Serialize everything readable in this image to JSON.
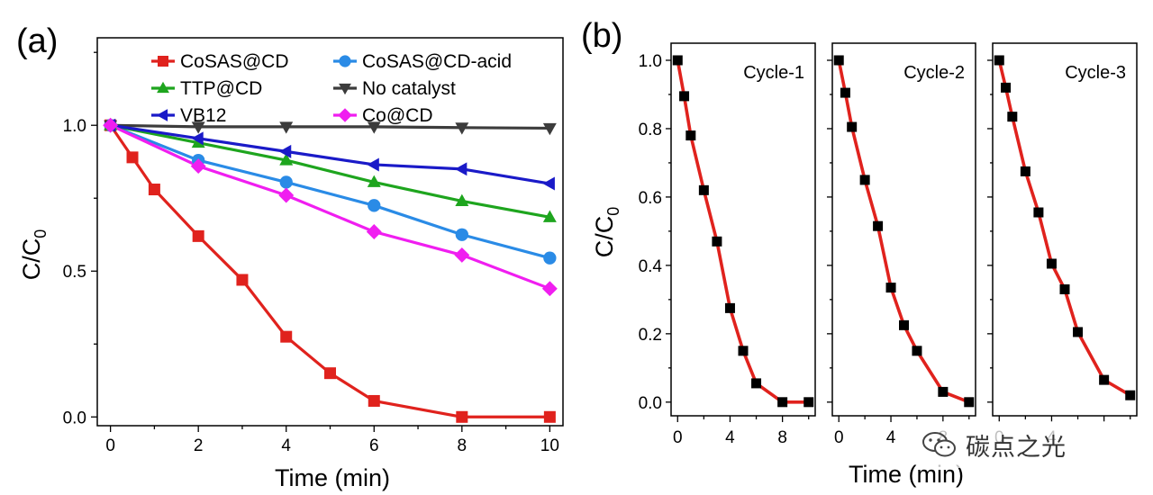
{
  "chart_data": [
    {
      "type": "line",
      "panel_label": "(a)",
      "xlabel": "Time (min)",
      "ylabel_main": "C/C",
      "ylabel_sub": "0",
      "xlim": [
        -0.3,
        10.3
      ],
      "ylim": [
        -0.03,
        1.3
      ],
      "x_ticks": [
        "0",
        "2",
        "4",
        "6",
        "8",
        "10"
      ],
      "x_tick_values": [
        0,
        2,
        4,
        6,
        8,
        10
      ],
      "y_ticks": [
        "0.0",
        "0.5",
        "1.0"
      ],
      "y_tick_values": [
        0,
        0.5,
        1.0
      ],
      "legend": "top",
      "grid": false,
      "series": [
        {
          "name": "CoSAS@CD",
          "color": "#e0221d",
          "marker": "square",
          "x": [
            0,
            0.5,
            1,
            2,
            3,
            4,
            5,
            6,
            8,
            10
          ],
          "y": [
            1.0,
            0.89,
            0.78,
            0.62,
            0.47,
            0.275,
            0.15,
            0.055,
            0.0,
            0.0
          ]
        },
        {
          "name": "CoSAS@CD-acid",
          "color": "#2a8be6",
          "marker": "circle",
          "x": [
            0,
            2,
            4,
            6,
            8,
            10
          ],
          "y": [
            1.0,
            0.88,
            0.805,
            0.725,
            0.625,
            0.545
          ]
        },
        {
          "name": "TTP@CD",
          "color": "#1ea51e",
          "marker": "triangle-up",
          "x": [
            0,
            2,
            4,
            6,
            8,
            10
          ],
          "y": [
            1.0,
            0.94,
            0.88,
            0.805,
            0.74,
            0.685
          ]
        },
        {
          "name": "No catalyst",
          "color": "#3c3c3c",
          "marker": "triangle-down",
          "x": [
            0,
            2,
            4,
            6,
            8,
            10
          ],
          "y": [
            1.0,
            0.995,
            0.995,
            0.995,
            0.992,
            0.99
          ]
        },
        {
          "name": "VB12",
          "color": "#1a1ac8",
          "marker": "triangle-left",
          "x": [
            0,
            2,
            4,
            6,
            8,
            10
          ],
          "y": [
            1.0,
            0.955,
            0.91,
            0.865,
            0.85,
            0.8
          ]
        },
        {
          "name": "Co@CD",
          "color": "#f01ef0",
          "marker": "diamond",
          "x": [
            0,
            2,
            4,
            6,
            8,
            10
          ],
          "y": [
            1.0,
            0.86,
            0.76,
            0.635,
            0.555,
            0.44
          ]
        }
      ]
    },
    {
      "type": "line",
      "panel_label": "(b)",
      "xlabel": "Time (min)",
      "ylabel_main": "C/C",
      "ylabel_sub": "0",
      "xlim": [
        -0.5,
        10.5
      ],
      "ylim": [
        -0.04,
        1.05
      ],
      "y_ticks": [
        "0.0",
        "0.2",
        "0.4",
        "0.6",
        "0.8",
        "1.0"
      ],
      "y_tick_values": [
        0,
        0.2,
        0.4,
        0.6,
        0.8,
        1.0
      ],
      "line_color": "#e0221d",
      "marker_color": "#000000",
      "subpanels": [
        {
          "label": "Cycle-1",
          "x_ticks": [
            "0",
            "4",
            "8"
          ],
          "x_tick_values": [
            0,
            4,
            8
          ],
          "x": [
            0,
            0.5,
            1,
            2,
            3,
            4,
            5,
            6,
            8,
            10
          ],
          "y": [
            1.0,
            0.895,
            0.78,
            0.62,
            0.47,
            0.275,
            0.15,
            0.055,
            0.0,
            0.0
          ]
        },
        {
          "label": "Cycle-2",
          "x_ticks": [
            "0",
            "4",
            "8"
          ],
          "x_tick_values": [
            0,
            4,
            8
          ],
          "x": [
            0,
            0.5,
            1,
            2,
            3,
            4,
            5,
            6,
            8,
            10
          ],
          "y": [
            1.0,
            0.905,
            0.805,
            0.65,
            0.515,
            0.335,
            0.225,
            0.15,
            0.03,
            0.0
          ]
        },
        {
          "label": "Cycle-3",
          "x_ticks": [
            "0",
            "4"
          ],
          "x_tick_values": [
            0,
            4
          ],
          "x": [
            0,
            0.5,
            1,
            2,
            3,
            4,
            5,
            6,
            8,
            10
          ],
          "y": [
            1.0,
            0.92,
            0.835,
            0.675,
            0.555,
            0.405,
            0.33,
            0.205,
            0.065,
            0.02
          ]
        }
      ]
    }
  ],
  "watermark": {
    "text": "碳点之光",
    "icon": "wechat-icon"
  }
}
